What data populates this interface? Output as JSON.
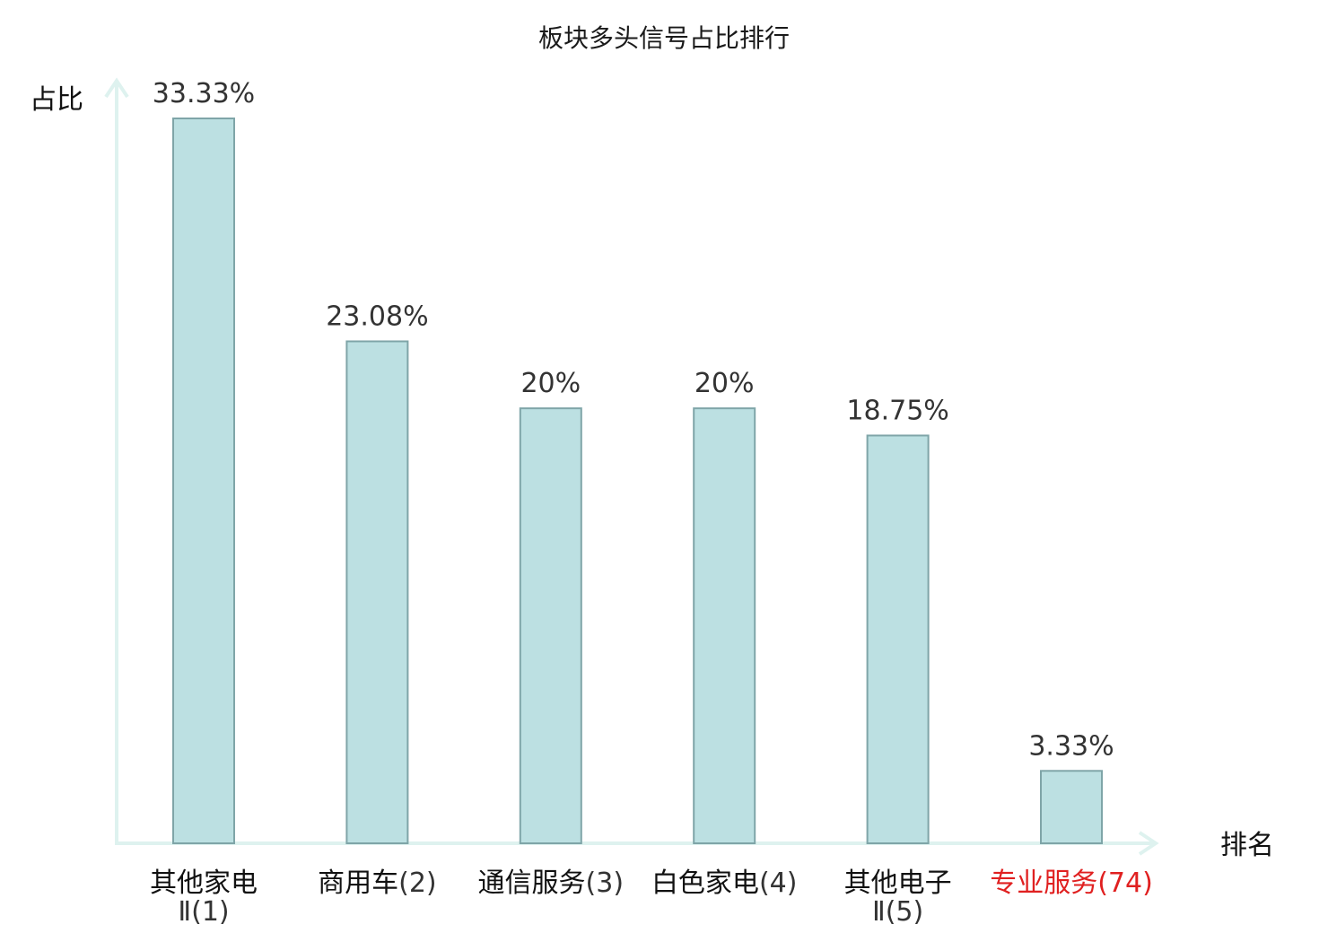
{
  "chart_data": {
    "type": "bar",
    "title": "板块多头信号占比排行",
    "ylabel": "占比",
    "xlabel": "排名",
    "ylim": [
      0,
      35
    ],
    "grid": false,
    "bar_color": "#bce0e2",
    "bar_border_color": "#7fa5a8",
    "axis_color": "#def2ef",
    "highlight_color": "#e02020",
    "categories": [
      {
        "name": "其他家电Ⅱ",
        "rank": "(1)",
        "value": 33.33,
        "label": "33.33%",
        "highlight": false
      },
      {
        "name": "商用车",
        "rank": "(2)",
        "value": 23.08,
        "label": "23.08%",
        "highlight": false
      },
      {
        "name": "通信服务",
        "rank": "(3)",
        "value": 20,
        "label": "20%",
        "highlight": false
      },
      {
        "name": "白色家电",
        "rank": "(4)",
        "value": 20,
        "label": "20%",
        "highlight": false
      },
      {
        "name": "其他电子Ⅱ",
        "rank": "(5)",
        "value": 18.75,
        "label": "18.75%",
        "highlight": false
      },
      {
        "name": "专业服务",
        "rank": "(74)",
        "value": 3.33,
        "label": "3.33%",
        "highlight": true
      }
    ]
  }
}
